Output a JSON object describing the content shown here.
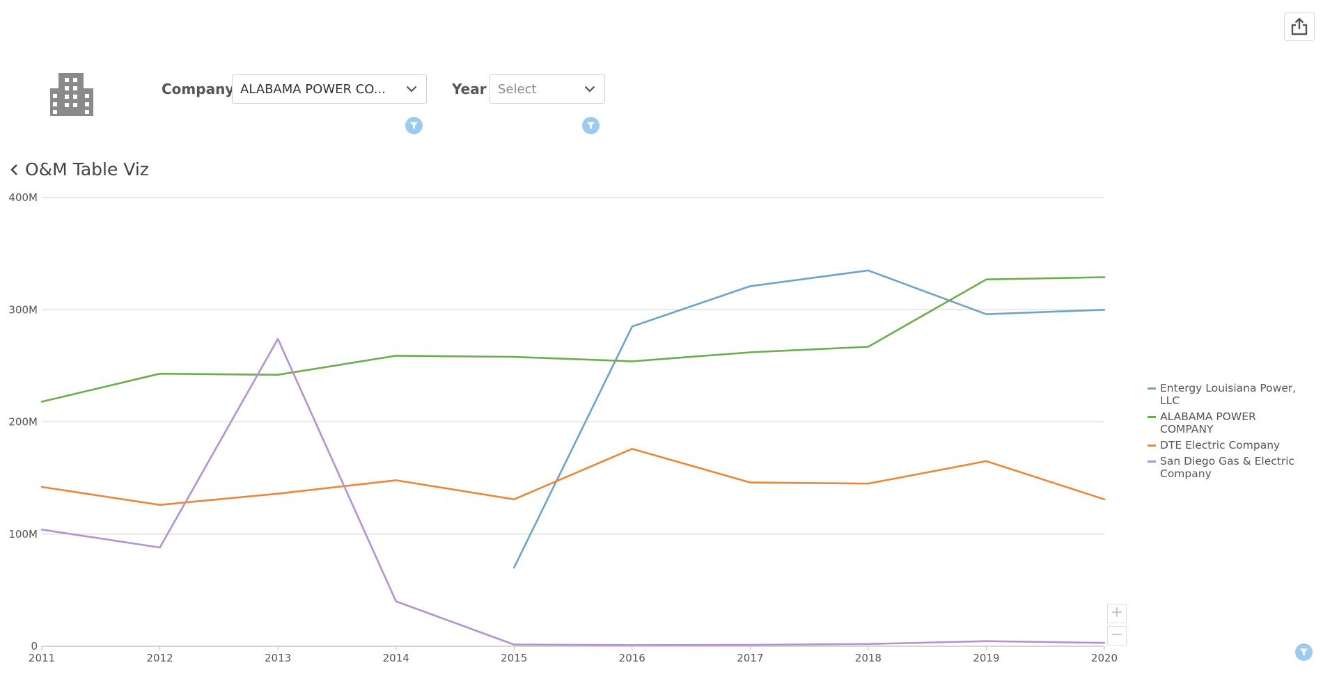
{
  "toolbar": {
    "share_icon": "share-icon"
  },
  "filters": {
    "company": {
      "label": "Company",
      "value": "ALABAMA POWER CO..."
    },
    "year": {
      "label": "Year",
      "placeholder": "Select"
    }
  },
  "viz": {
    "title": "O&M Table Viz",
    "back_icon": "chevron-left-icon"
  },
  "zoom": {
    "in": "+",
    "out": "−"
  },
  "colors": {
    "accent": "#9ccbee",
    "entergy": "#6ba3c9",
    "alabama": "#6aad4b",
    "dte": "#ed8535",
    "sandiego": "#b392cf",
    "grid": "#d9d9d9",
    "icon_gray": "#8a8a8a"
  },
  "chart_data": {
    "type": "line",
    "title": "",
    "xlabel": "",
    "ylabel": "",
    "x": [
      "2011",
      "2012",
      "2013",
      "2014",
      "2015",
      "2016",
      "2017",
      "2018",
      "2019",
      "2020"
    ],
    "ylim": [
      0,
      400000000
    ],
    "yticks": [
      {
        "value": 0,
        "label": "0"
      },
      {
        "value": 100000000,
        "label": "100M"
      },
      {
        "value": 200000000,
        "label": "200M"
      },
      {
        "value": 300000000,
        "label": "300M"
      },
      {
        "value": 400000000,
        "label": "400M"
      }
    ],
    "grid": true,
    "legend_position": "right",
    "series": [
      {
        "name": "Entergy Louisiana Power, LLC",
        "color": "#6ba3c9",
        "values": [
          null,
          null,
          null,
          null,
          70000000,
          285000000,
          321000000,
          335000000,
          296000000,
          300000000
        ]
      },
      {
        "name": "ALABAMA POWER COMPANY",
        "color": "#6aad4b",
        "values": [
          218000000,
          243000000,
          242000000,
          259000000,
          258000000,
          254000000,
          262000000,
          267000000,
          327000000,
          329000000
        ]
      },
      {
        "name": "DTE Electric Company",
        "color": "#ed8535",
        "values": [
          142000000,
          126000000,
          136000000,
          148000000,
          131000000,
          176000000,
          146000000,
          145000000,
          165000000,
          131000000
        ]
      },
      {
        "name": "San Diego Gas & Electric Company",
        "color": "#b392cf",
        "values": [
          104000000,
          88000000,
          274000000,
          40000000,
          1500000,
          1000000,
          1200000,
          2000000,
          4500000,
          3000000
        ]
      }
    ]
  }
}
